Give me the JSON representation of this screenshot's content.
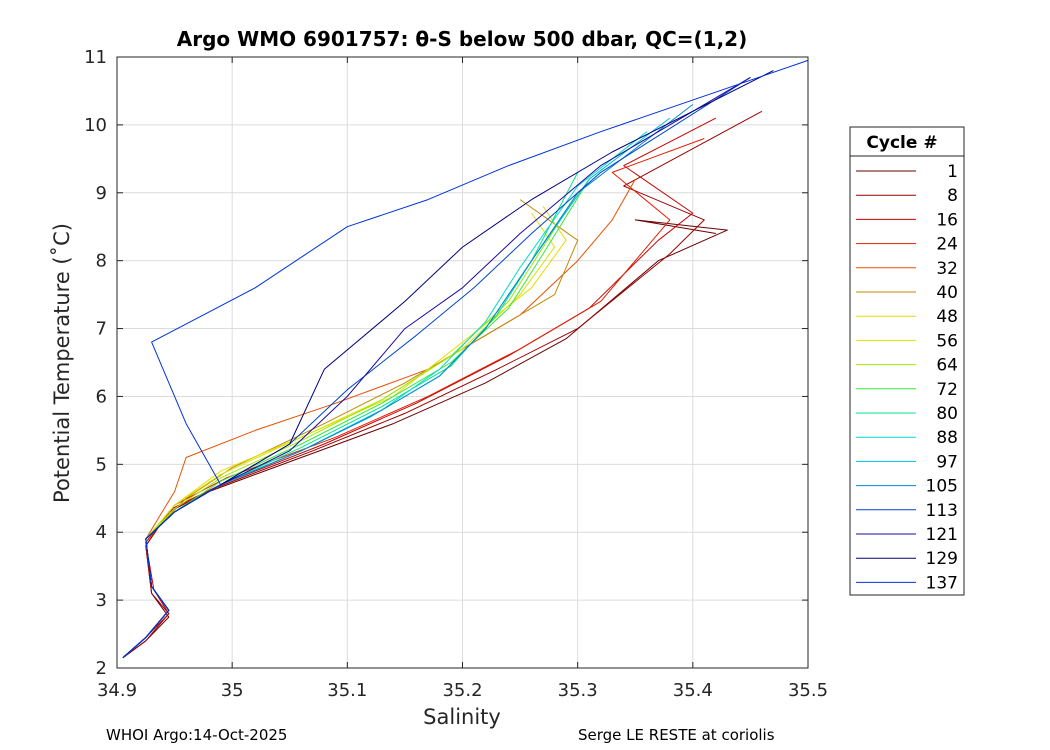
{
  "colors": {
    "background": "#ffffff",
    "axes": "#262626",
    "grid": "#dcdcdc"
  },
  "chart_data": {
    "type": "line",
    "title": "Argo WMO 6901757: θ-S below 500 dbar,  QC=(1,2)",
    "xlabel": "Salinity",
    "ylabel": "Potential Temperature (˚C)",
    "xlim": [
      34.9,
      35.5
    ],
    "ylim": [
      2,
      11
    ],
    "x_ticks": [
      "34.9",
      "35",
      "35.1",
      "35.2",
      "35.3",
      "35.4",
      "35.5"
    ],
    "y_ticks": [
      "2",
      "3",
      "4",
      "5",
      "6",
      "7",
      "8",
      "9",
      "10",
      "11"
    ],
    "x_tick_values": [
      34.9,
      35.0,
      35.1,
      35.2,
      35.3,
      35.4,
      35.5
    ],
    "y_tick_values": [
      2,
      3,
      4,
      5,
      6,
      7,
      8,
      9,
      10,
      11
    ],
    "grid": true,
    "legend_title": "Cycle #",
    "legend_position": "right",
    "series": [
      {
        "name": "1",
        "color": "#6b0000",
        "x": [
          34.905,
          34.925,
          34.945,
          34.93,
          34.925,
          34.945,
          34.98,
          35.06,
          35.14,
          35.22,
          35.29,
          35.37,
          35.43,
          35.35,
          35.42
        ],
        "y": [
          2.15,
          2.4,
          2.75,
          3.1,
          3.8,
          4.3,
          4.6,
          5.1,
          5.6,
          6.2,
          6.85,
          8.0,
          8.45,
          8.6,
          8.4
        ]
      },
      {
        "name": "8",
        "color": "#9a0000",
        "x": [
          34.905,
          34.925,
          34.945,
          34.93,
          34.925,
          34.945,
          34.985,
          35.07,
          35.15,
          35.23,
          35.3,
          35.38,
          35.41,
          35.34,
          35.46
        ],
        "y": [
          2.15,
          2.4,
          2.8,
          3.1,
          3.8,
          4.3,
          4.65,
          5.2,
          5.75,
          6.4,
          7.0,
          8.1,
          8.6,
          9.1,
          10.2
        ]
      },
      {
        "name": "16",
        "color": "#c80000",
        "x": [
          34.905,
          34.925,
          34.945,
          34.932,
          34.925,
          34.948,
          34.99,
          35.08,
          35.16,
          35.24,
          35.31,
          35.37,
          35.4,
          35.34,
          35.42
        ],
        "y": [
          2.15,
          2.45,
          2.8,
          3.15,
          3.85,
          4.35,
          4.7,
          5.3,
          5.9,
          6.6,
          7.3,
          8.3,
          8.7,
          9.4,
          10.1
        ]
      },
      {
        "name": "24",
        "color": "#e01e00",
        "x": [
          34.905,
          34.925,
          34.945,
          34.93,
          34.925,
          34.95,
          34.995,
          35.09,
          35.17,
          35.25,
          35.32,
          35.36,
          35.38,
          35.33,
          35.41
        ],
        "y": [
          2.15,
          2.45,
          2.85,
          3.2,
          3.85,
          4.4,
          4.8,
          5.4,
          6.0,
          6.7,
          7.4,
          8.2,
          8.6,
          9.3,
          9.8
        ]
      },
      {
        "name": "32",
        "color": "#e85000",
        "x": [
          34.905,
          34.925,
          34.945,
          34.93,
          34.925,
          34.95,
          34.96,
          35.02,
          35.09,
          35.17,
          35.25,
          35.3,
          35.33,
          35.35
        ],
        "y": [
          2.15,
          2.45,
          2.85,
          3.2,
          3.9,
          4.6,
          5.1,
          5.5,
          5.9,
          6.4,
          7.2,
          8.0,
          8.6,
          9.2
        ]
      },
      {
        "name": "40",
        "color": "#c08a00",
        "x": [
          34.905,
          34.925,
          34.945,
          34.93,
          34.925,
          34.96,
          35.0,
          35.08,
          35.15,
          35.22,
          35.28,
          35.3,
          35.25
        ],
        "y": [
          2.15,
          2.45,
          2.85,
          3.2,
          3.9,
          4.5,
          4.95,
          5.6,
          6.2,
          6.9,
          7.5,
          8.3,
          8.9
        ]
      },
      {
        "name": "48",
        "color": "#e6dc00",
        "x": [
          34.905,
          34.925,
          34.945,
          34.93,
          34.925,
          34.95,
          34.99,
          35.06,
          35.14,
          35.2,
          35.26,
          35.29,
          35.27
        ],
        "y": [
          2.15,
          2.45,
          2.85,
          3.2,
          3.9,
          4.4,
          4.9,
          5.4,
          6.0,
          6.8,
          7.6,
          8.3,
          8.8
        ]
      },
      {
        "name": "56",
        "color": "#d4e600",
        "x": [
          34.905,
          34.925,
          34.945,
          34.93,
          34.925,
          34.95,
          34.99,
          35.06,
          35.13,
          35.2,
          35.25,
          35.28,
          35.26
        ],
        "y": [
          2.15,
          2.45,
          2.85,
          3.2,
          3.9,
          4.4,
          4.85,
          5.4,
          5.95,
          6.7,
          7.5,
          8.2,
          8.7
        ]
      },
      {
        "name": "64",
        "color": "#a0e600",
        "x": [
          34.905,
          34.925,
          34.945,
          34.93,
          34.925,
          34.95,
          34.99,
          35.06,
          35.13,
          35.19,
          35.24,
          35.27,
          35.3
        ],
        "y": [
          2.15,
          2.45,
          2.85,
          3.2,
          3.9,
          4.35,
          4.8,
          5.35,
          5.95,
          6.6,
          7.4,
          8.2,
          9.0
        ]
      },
      {
        "name": "72",
        "color": "#3ce83c",
        "x": [
          34.905,
          34.925,
          34.945,
          34.93,
          34.925,
          34.95,
          34.99,
          35.06,
          35.13,
          35.19,
          35.24,
          35.27,
          35.31
        ],
        "y": [
          2.15,
          2.45,
          2.85,
          3.2,
          3.9,
          4.3,
          4.75,
          5.3,
          5.9,
          6.5,
          7.3,
          8.1,
          9.2
        ]
      },
      {
        "name": "80",
        "color": "#00e68c",
        "x": [
          34.905,
          34.925,
          34.945,
          34.93,
          34.925,
          34.95,
          34.99,
          35.06,
          35.13,
          35.19,
          35.23,
          35.26,
          35.3
        ],
        "y": [
          2.15,
          2.45,
          2.85,
          3.2,
          3.9,
          4.3,
          4.7,
          5.25,
          5.85,
          6.45,
          7.2,
          8.0,
          9.3
        ]
      },
      {
        "name": "88",
        "color": "#00dcc8",
        "x": [
          34.905,
          34.925,
          34.945,
          34.93,
          34.925,
          34.95,
          34.99,
          35.06,
          35.13,
          35.18,
          35.22,
          35.25,
          35.3,
          35.36
        ],
        "y": [
          2.15,
          2.45,
          2.85,
          3.2,
          3.9,
          4.3,
          4.7,
          5.2,
          5.8,
          6.4,
          7.1,
          7.9,
          9.1,
          9.9
        ]
      },
      {
        "name": "97",
        "color": "#00bedc",
        "x": [
          34.905,
          34.925,
          34.945,
          34.93,
          34.925,
          34.95,
          34.99,
          35.06,
          35.13,
          35.18,
          35.22,
          35.26,
          35.31,
          35.38
        ],
        "y": [
          2.15,
          2.45,
          2.85,
          3.2,
          3.9,
          4.3,
          4.7,
          5.2,
          5.8,
          6.3,
          7.0,
          8.0,
          9.2,
          10.1
        ]
      },
      {
        "name": "105",
        "color": "#0088d2",
        "x": [
          34.905,
          34.925,
          34.945,
          34.93,
          34.925,
          34.95,
          34.99,
          35.06,
          35.12,
          35.18,
          35.22,
          35.26,
          35.3,
          35.4
        ],
        "y": [
          2.15,
          2.45,
          2.85,
          3.2,
          3.9,
          4.3,
          4.7,
          5.2,
          5.7,
          6.3,
          7.0,
          8.0,
          9.0,
          10.3
        ]
      },
      {
        "name": "113",
        "color": "#0046c8",
        "x": [
          34.905,
          34.925,
          34.945,
          34.93,
          34.925,
          34.95,
          34.99,
          35.05,
          35.1,
          35.16,
          35.21,
          35.26,
          35.32,
          35.45
        ],
        "y": [
          2.15,
          2.45,
          2.85,
          3.2,
          3.9,
          4.3,
          4.7,
          5.3,
          6.1,
          6.9,
          7.6,
          8.4,
          9.3,
          10.7
        ]
      },
      {
        "name": "121",
        "color": "#1a0aa0",
        "x": [
          34.905,
          34.925,
          34.945,
          34.93,
          34.925,
          34.95,
          34.99,
          35.05,
          35.1,
          35.15,
          35.2,
          35.25,
          35.32,
          35.45
        ],
        "y": [
          2.15,
          2.45,
          2.85,
          3.2,
          3.9,
          4.3,
          4.7,
          5.2,
          6.0,
          7.0,
          7.6,
          8.4,
          9.4,
          10.7
        ]
      },
      {
        "name": "129",
        "color": "#00007a",
        "x": [
          34.905,
          34.925,
          34.945,
          34.93,
          34.925,
          34.95,
          34.99,
          35.05,
          35.08,
          35.15,
          35.2,
          35.26,
          35.33,
          35.47
        ],
        "y": [
          2.15,
          2.45,
          2.85,
          3.2,
          3.9,
          4.3,
          4.7,
          5.3,
          6.4,
          7.4,
          8.2,
          8.9,
          9.6,
          10.8
        ]
      },
      {
        "name": "137",
        "color": "#0032dc",
        "x": [
          34.905,
          34.925,
          34.945,
          34.93,
          34.925,
          34.95,
          34.99,
          34.96,
          34.93,
          35.02,
          35.1,
          35.17,
          35.24,
          35.32,
          35.5
        ],
        "y": [
          2.15,
          2.45,
          2.85,
          3.2,
          3.9,
          4.3,
          4.7,
          5.6,
          6.8,
          7.6,
          8.5,
          8.9,
          9.4,
          9.9,
          10.95
        ]
      }
    ]
  },
  "footer": {
    "left": "WHOI Argo:14-Oct-2025",
    "right": "Serge LE RESTE at coriolis"
  }
}
